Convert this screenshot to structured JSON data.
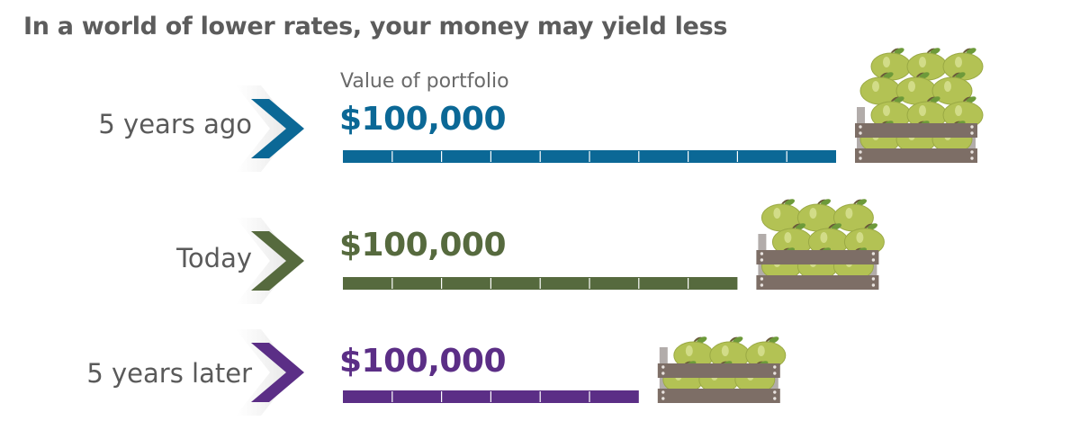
{
  "title": "In a world of lower rates, your money may yield less",
  "subtitle": "Value of portfolio",
  "colors": {
    "five_years_ago": "#0b6896",
    "today": "#566a3e",
    "five_years_later": "#5b2e86",
    "apple": "#b3c254",
    "leaf": "#6d9a3a",
    "crate_board": "#7d6e66",
    "crate_post": "#b2acaa"
  },
  "rows": [
    {
      "label": "5 years ago",
      "value": "$100,000",
      "color_key": "five_years_ago"
    },
    {
      "label": "Today",
      "value": "$100,000",
      "color_key": "today"
    },
    {
      "label": "5 years later",
      "value": "$100,000",
      "color_key": "five_years_later"
    }
  ],
  "chart_data": {
    "type": "bar",
    "orientation": "horizontal",
    "title": "In a world of lower rates, your money may yield less",
    "subtitle": "Value of portfolio",
    "categories": [
      "5 years ago",
      "Today",
      "5 years later"
    ],
    "value_labels": [
      "$100,000",
      "$100,000",
      "$100,000"
    ],
    "values": [
      10,
      8,
      6
    ],
    "xlim": [
      0,
      10
    ],
    "grid": false,
    "legend": "none"
  }
}
